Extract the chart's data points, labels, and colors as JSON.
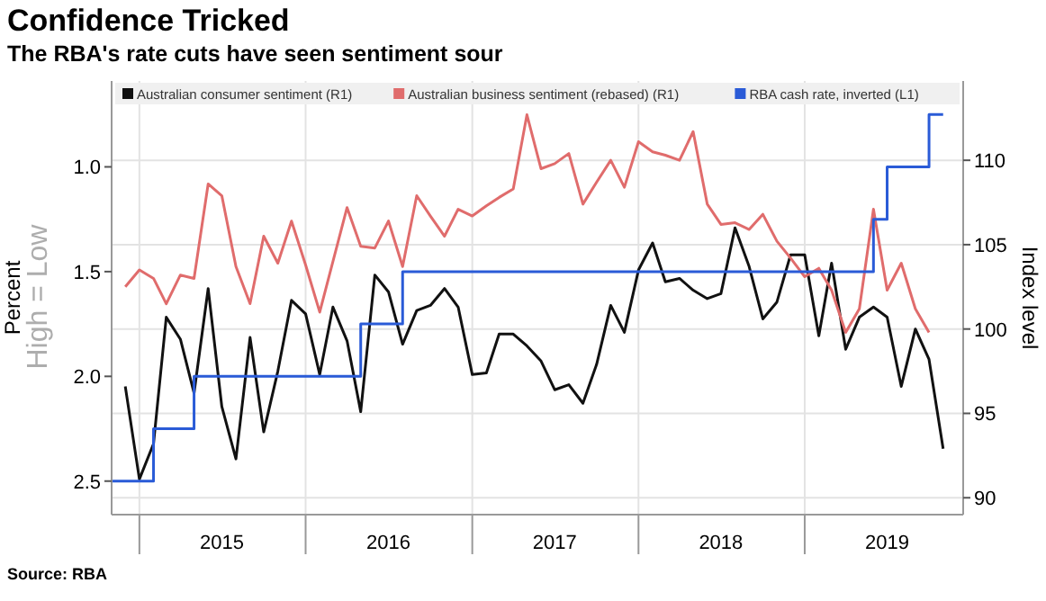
{
  "chart_data": {
    "type": "line",
    "title": "Confidence Tricked",
    "subtitle": "The RBA's rate cuts have seen sentiment sour",
    "ylabel": "Percent",
    "y2label": "Index level",
    "annotations": [
      "High = Low",
      "Source: RBA"
    ],
    "xlim": [
      "2014-11",
      "2019-12-15"
    ],
    "xticks": [
      {
        "value": "2015-01",
        "label": null
      },
      {
        "value": "2015-07",
        "label": "2015"
      },
      {
        "value": "2016-01",
        "label": null
      },
      {
        "value": "2016-07",
        "label": "2016"
      },
      {
        "value": "2017-01",
        "label": null
      },
      {
        "value": "2017-07",
        "label": "2017"
      },
      {
        "value": "2018-01",
        "label": null
      },
      {
        "value": "2018-07",
        "label": "2018"
      },
      {
        "value": "2019-01",
        "label": null
      },
      {
        "value": "2019-07",
        "label": "2019"
      }
    ],
    "ylim": [
      2.66,
      0.59
    ],
    "yticks": [
      {
        "value": 1,
        "label": "1.0"
      },
      {
        "value": 1.5,
        "label": "1.5"
      },
      {
        "value": 2,
        "label": "2.0"
      },
      {
        "value": 2.5,
        "label": "2.5"
      }
    ],
    "y2lim": [
      89,
      114.7
    ],
    "y2ticks": [
      90,
      95,
      100,
      105,
      110
    ],
    "grid": true,
    "legend": "top",
    "series": [
      {
        "name": "Australian consumer sentiment (R1)",
        "color": "#111111",
        "type": "line",
        "axis": "y2",
        "x": [
          "2014-12",
          "2015-01",
          "2015-02",
          "2015-03",
          "2015-04",
          "2015-05",
          "2015-06",
          "2015-07",
          "2015-08",
          "2015-09",
          "2015-10",
          "2015-11",
          "2015-12",
          "2016-01",
          "2016-02",
          "2016-03",
          "2016-04",
          "2016-05",
          "2016-06",
          "2016-07",
          "2016-08",
          "2016-09",
          "2016-10",
          "2016-11",
          "2016-12",
          "2017-01",
          "2017-02",
          "2017-03",
          "2017-04",
          "2017-05",
          "2017-06",
          "2017-07",
          "2017-08",
          "2017-09",
          "2017-10",
          "2017-11",
          "2017-12",
          "2018-01",
          "2018-02",
          "2018-03",
          "2018-04",
          "2018-05",
          "2018-06",
          "2018-07",
          "2018-08",
          "2018-09",
          "2018-10",
          "2018-11",
          "2018-12",
          "2019-01",
          "2019-02",
          "2019-03",
          "2019-04",
          "2019-05",
          "2019-06",
          "2019-07",
          "2019-08",
          "2019-09",
          "2019-10",
          "2019-11"
        ],
        "values": [
          96.6,
          91.1,
          93.2,
          100.7,
          99.4,
          96.2,
          102.4,
          95.4,
          92.3,
          99.5,
          93.9,
          97.5,
          101.7,
          100.9,
          97.3,
          101.3,
          99.3,
          95.1,
          103.2,
          102.2,
          99.1,
          101.1,
          101.4,
          102.4,
          101.3,
          97.3,
          97.4,
          99.7,
          99.7,
          99.0,
          98.1,
          96.4,
          96.7,
          95.6,
          97.9,
          101.4,
          99.8,
          103.5,
          105.1,
          102.8,
          103.0,
          102.3,
          101.8,
          102.1,
          106.0,
          103.7,
          100.6,
          101.6,
          104.4,
          104.4,
          99.6,
          103.9,
          98.8,
          100.7,
          101.3,
          100.7,
          96.6,
          100.0,
          98.2,
          92.9
        ]
      },
      {
        "name": "Australian business sentiment (rebased) (R1)",
        "color": "#e06c6c",
        "type": "line",
        "axis": "y2",
        "x": [
          "2014-12",
          "2015-01",
          "2015-02",
          "2015-03",
          "2015-04",
          "2015-05",
          "2015-06",
          "2015-07",
          "2015-08",
          "2015-09",
          "2015-10",
          "2015-11",
          "2015-12",
          "2016-01",
          "2016-02",
          "2016-03",
          "2016-04",
          "2016-05",
          "2016-06",
          "2016-07",
          "2016-08",
          "2016-09",
          "2016-10",
          "2016-11",
          "2016-12",
          "2017-01",
          "2017-02",
          "2017-03",
          "2017-04",
          "2017-05",
          "2017-06",
          "2017-07",
          "2017-08",
          "2017-09",
          "2017-10",
          "2017-11",
          "2017-12",
          "2018-01",
          "2018-02",
          "2018-03",
          "2018-04",
          "2018-05",
          "2018-06",
          "2018-07",
          "2018-08",
          "2018-09",
          "2018-10",
          "2018-11",
          "2018-12",
          "2019-01",
          "2019-02",
          "2019-03",
          "2019-04",
          "2019-05",
          "2019-06",
          "2019-07",
          "2019-08",
          "2019-09",
          "2019-10"
        ],
        "values": [
          102.5,
          103.5,
          103.0,
          101.5,
          103.2,
          103.0,
          108.6,
          107.9,
          103.7,
          101.5,
          105.5,
          103.9,
          106.4,
          103.8,
          101.0,
          104.0,
          107.2,
          104.9,
          104.8,
          106.4,
          103.7,
          107.9,
          106.7,
          105.5,
          107.1,
          106.7,
          107.3,
          107.8,
          108.3,
          112.7,
          109.5,
          109.8,
          110.4,
          107.4,
          108.7,
          110.0,
          108.4,
          111.1,
          110.5,
          110.3,
          110.0,
          111.7,
          107.4,
          106.2,
          106.3,
          105.9,
          106.8,
          105.2,
          104.2,
          103.1,
          103.6,
          102.3,
          99.8,
          101.2,
          107.1,
          102.3,
          103.9,
          101.2,
          99.8
        ]
      },
      {
        "name": "RBA cash rate, inverted (L1)",
        "color": "#2a5bd7",
        "type": "step",
        "axis": "y",
        "x": [
          "2014-11",
          "2015-02",
          "2015-05",
          "2016-05",
          "2016-08",
          "2019-06",
          "2019-07",
          "2019-10",
          "2019-11"
        ],
        "values": [
          2.5,
          2.25,
          2.0,
          1.75,
          1.5,
          1.25,
          1.0,
          0.75,
          0.75
        ]
      }
    ]
  }
}
